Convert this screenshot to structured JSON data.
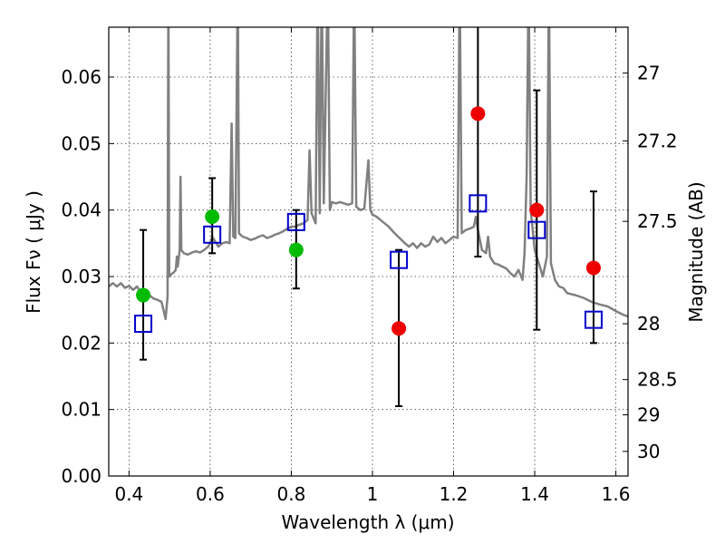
{
  "chart_data": {
    "type": "scatter",
    "title": "",
    "xlabel": "Wavelength  λ (μm)",
    "ylabel": "Flux  Fν  ( μJy )",
    "y2label": "Magnitude (AB)",
    "xlim": [
      0.35,
      1.63
    ],
    "ylim": [
      0.0,
      0.0675
    ],
    "x_ticks": [
      0.4,
      0.6,
      0.8,
      1.0,
      1.2,
      1.4,
      1.6
    ],
    "x_tick_labels": [
      "0.4",
      "0.6",
      "0.8",
      "1",
      "1.2",
      "1.4",
      "1.6"
    ],
    "y_ticks": [
      0.0,
      0.01,
      0.02,
      0.03,
      0.04,
      0.05,
      0.06
    ],
    "y_tick_labels": [
      "0.00",
      "0.01",
      "0.02",
      "0.03",
      "0.04",
      "0.05",
      "0.06"
    ],
    "y2_ticks": [
      {
        "label": "27",
        "flux": 0.0606
      },
      {
        "label": "27.2",
        "flux": 0.0504
      },
      {
        "label": "27.5",
        "flux": 0.0383
      },
      {
        "label": "28",
        "flux": 0.0229
      },
      {
        "label": "28.5",
        "flux": 0.0145
      },
      {
        "label": "29",
        "flux": 0.0092
      },
      {
        "label": "30",
        "flux": 0.0037
      }
    ],
    "grid": true,
    "colors": {
      "sed": "#808080",
      "detected": "#00bb00",
      "upper": "#ee0000",
      "model": "#0000cc",
      "errorbar": "#000000"
    },
    "series": [
      {
        "type": "line",
        "role": "template-spectrum",
        "color": "#808080",
        "points": [
          [
            0.35,
            0.0285
          ],
          [
            0.36,
            0.029
          ],
          [
            0.37,
            0.0285
          ],
          [
            0.38,
            0.029
          ],
          [
            0.39,
            0.0283
          ],
          [
            0.4,
            0.0286
          ],
          [
            0.41,
            0.028
          ],
          [
            0.42,
            0.0285
          ],
          [
            0.43,
            0.0275
          ],
          [
            0.44,
            0.027
          ],
          [
            0.45,
            0.0272
          ],
          [
            0.46,
            0.0267
          ],
          [
            0.47,
            0.0265
          ],
          [
            0.48,
            0.0262
          ],
          [
            0.485,
            0.025
          ],
          [
            0.49,
            0.0236
          ],
          [
            0.495,
            0.027
          ],
          [
            0.497,
            0.075
          ],
          [
            0.499,
            0.03
          ],
          [
            0.505,
            0.0304
          ],
          [
            0.51,
            0.0306
          ],
          [
            0.515,
            0.031
          ],
          [
            0.518,
            0.033
          ],
          [
            0.52,
            0.0315
          ],
          [
            0.525,
            0.034
          ],
          [
            0.527,
            0.045
          ],
          [
            0.529,
            0.034
          ],
          [
            0.535,
            0.0335
          ],
          [
            0.545,
            0.0333
          ],
          [
            0.555,
            0.0336
          ],
          [
            0.565,
            0.0338
          ],
          [
            0.575,
            0.0336
          ],
          [
            0.585,
            0.034
          ],
          [
            0.595,
            0.0345
          ],
          [
            0.6,
            0.035
          ],
          [
            0.605,
            0.036
          ],
          [
            0.61,
            0.0355
          ],
          [
            0.62,
            0.0345
          ],
          [
            0.63,
            0.035
          ],
          [
            0.64,
            0.0352
          ],
          [
            0.648,
            0.035
          ],
          [
            0.653,
            0.053
          ],
          [
            0.657,
            0.036
          ],
          [
            0.662,
            0.0358
          ],
          [
            0.668,
            0.075
          ],
          [
            0.671,
            0.0365
          ],
          [
            0.68,
            0.036
          ],
          [
            0.69,
            0.0358
          ],
          [
            0.7,
            0.0355
          ],
          [
            0.71,
            0.0357
          ],
          [
            0.72,
            0.036
          ],
          [
            0.73,
            0.0362
          ],
          [
            0.74,
            0.0358
          ],
          [
            0.75,
            0.036
          ],
          [
            0.76,
            0.0363
          ],
          [
            0.77,
            0.0365
          ],
          [
            0.78,
            0.0368
          ],
          [
            0.79,
            0.0372
          ],
          [
            0.8,
            0.0375
          ],
          [
            0.81,
            0.0375
          ],
          [
            0.82,
            0.0378
          ],
          [
            0.83,
            0.038
          ],
          [
            0.84,
            0.0385
          ],
          [
            0.845,
            0.049
          ],
          [
            0.85,
            0.0395
          ],
          [
            0.86,
            0.038
          ],
          [
            0.865,
            0.075
          ],
          [
            0.87,
            0.0395
          ],
          [
            0.875,
            0.075
          ],
          [
            0.88,
            0.041
          ],
          [
            0.89,
            0.075
          ],
          [
            0.895,
            0.04
          ],
          [
            0.9,
            0.0412
          ],
          [
            0.91,
            0.041
          ],
          [
            0.92,
            0.0412
          ],
          [
            0.93,
            0.041
          ],
          [
            0.94,
            0.0408
          ],
          [
            0.95,
            0.041
          ],
          [
            0.955,
            0.075
          ],
          [
            0.96,
            0.0405
          ],
          [
            0.97,
            0.04
          ],
          [
            0.98,
            0.0402
          ],
          [
            0.99,
            0.0475
          ],
          [
            0.995,
            0.04
          ],
          [
            1.0,
            0.0393
          ],
          [
            1.01,
            0.039
          ],
          [
            1.02,
            0.0385
          ],
          [
            1.03,
            0.038
          ],
          [
            1.04,
            0.0375
          ],
          [
            1.05,
            0.0368
          ],
          [
            1.06,
            0.0362
          ],
          [
            1.07,
            0.0356
          ],
          [
            1.08,
            0.035
          ],
          [
            1.09,
            0.0345
          ],
          [
            1.1,
            0.035
          ],
          [
            1.11,
            0.0343
          ],
          [
            1.12,
            0.035
          ],
          [
            1.13,
            0.0345
          ],
          [
            1.14,
            0.0348
          ],
          [
            1.15,
            0.036
          ],
          [
            1.16,
            0.0352
          ],
          [
            1.17,
            0.0358
          ],
          [
            1.18,
            0.035
          ],
          [
            1.19,
            0.0355
          ],
          [
            1.2,
            0.036
          ],
          [
            1.21,
            0.0358
          ],
          [
            1.215,
            0.075
          ],
          [
            1.22,
            0.0365
          ],
          [
            1.23,
            0.037
          ],
          [
            1.24,
            0.0372
          ],
          [
            1.25,
            0.0375
          ],
          [
            1.255,
            0.039
          ],
          [
            1.26,
            0.037
          ],
          [
            1.27,
            0.034
          ],
          [
            1.28,
            0.0335
          ],
          [
            1.285,
            0.036
          ],
          [
            1.29,
            0.033
          ],
          [
            1.3,
            0.032
          ],
          [
            1.31,
            0.0318
          ],
          [
            1.32,
            0.0315
          ],
          [
            1.33,
            0.0312
          ],
          [
            1.34,
            0.0305
          ],
          [
            1.35,
            0.03
          ],
          [
            1.36,
            0.031
          ],
          [
            1.37,
            0.0295
          ],
          [
            1.375,
            0.0335
          ],
          [
            1.38,
            0.045
          ],
          [
            1.385,
            0.075
          ],
          [
            1.39,
            0.04
          ],
          [
            1.4,
            0.034
          ],
          [
            1.41,
            0.032
          ],
          [
            1.42,
            0.03
          ],
          [
            1.43,
            0.033
          ],
          [
            1.435,
            0.075
          ],
          [
            1.44,
            0.032
          ],
          [
            1.45,
            0.0295
          ],
          [
            1.46,
            0.0285
          ],
          [
            1.47,
            0.0283
          ],
          [
            1.48,
            0.0275
          ],
          [
            1.5,
            0.0272
          ],
          [
            1.52,
            0.0268
          ],
          [
            1.54,
            0.0262
          ],
          [
            1.56,
            0.0258
          ],
          [
            1.58,
            0.0255
          ],
          [
            1.6,
            0.0248
          ],
          [
            1.62,
            0.0242
          ],
          [
            1.63,
            0.024
          ]
        ]
      },
      {
        "type": "scatter",
        "role": "detected-flux",
        "color": "#00bb00",
        "points": [
          {
            "x": 0.435,
            "y": 0.0272
          },
          {
            "x": 0.605,
            "y": 0.039
          },
          {
            "x": 0.812,
            "y": 0.034
          }
        ]
      },
      {
        "type": "scatter",
        "role": "upper-limit-flux",
        "color": "#ee0000",
        "points": [
          {
            "x": 1.065,
            "y": 0.0222
          },
          {
            "x": 1.26,
            "y": 0.0545
          },
          {
            "x": 1.405,
            "y": 0.04
          },
          {
            "x": 1.545,
            "y": 0.0313
          }
        ]
      },
      {
        "type": "scatter",
        "role": "model-flux",
        "color": "#0000cc",
        "points": [
          {
            "x": 0.435,
            "y": 0.0229,
            "err": [
              0.0175,
              0.037
            ]
          },
          {
            "x": 0.605,
            "y": 0.0363,
            "err": [
              0.0335,
              0.0448
            ]
          },
          {
            "x": 0.812,
            "y": 0.0382,
            "err": [
              0.0282,
              0.04
            ]
          },
          {
            "x": 1.065,
            "y": 0.0325,
            "err": [
              0.0105,
              0.034
            ]
          },
          {
            "x": 1.26,
            "y": 0.041,
            "err": [
              0.033,
              0.068
            ]
          },
          {
            "x": 1.405,
            "y": 0.037,
            "err": [
              0.022,
              0.058
            ]
          },
          {
            "x": 1.545,
            "y": 0.0235,
            "err": [
              0.02,
              0.0428
            ]
          }
        ]
      }
    ]
  }
}
